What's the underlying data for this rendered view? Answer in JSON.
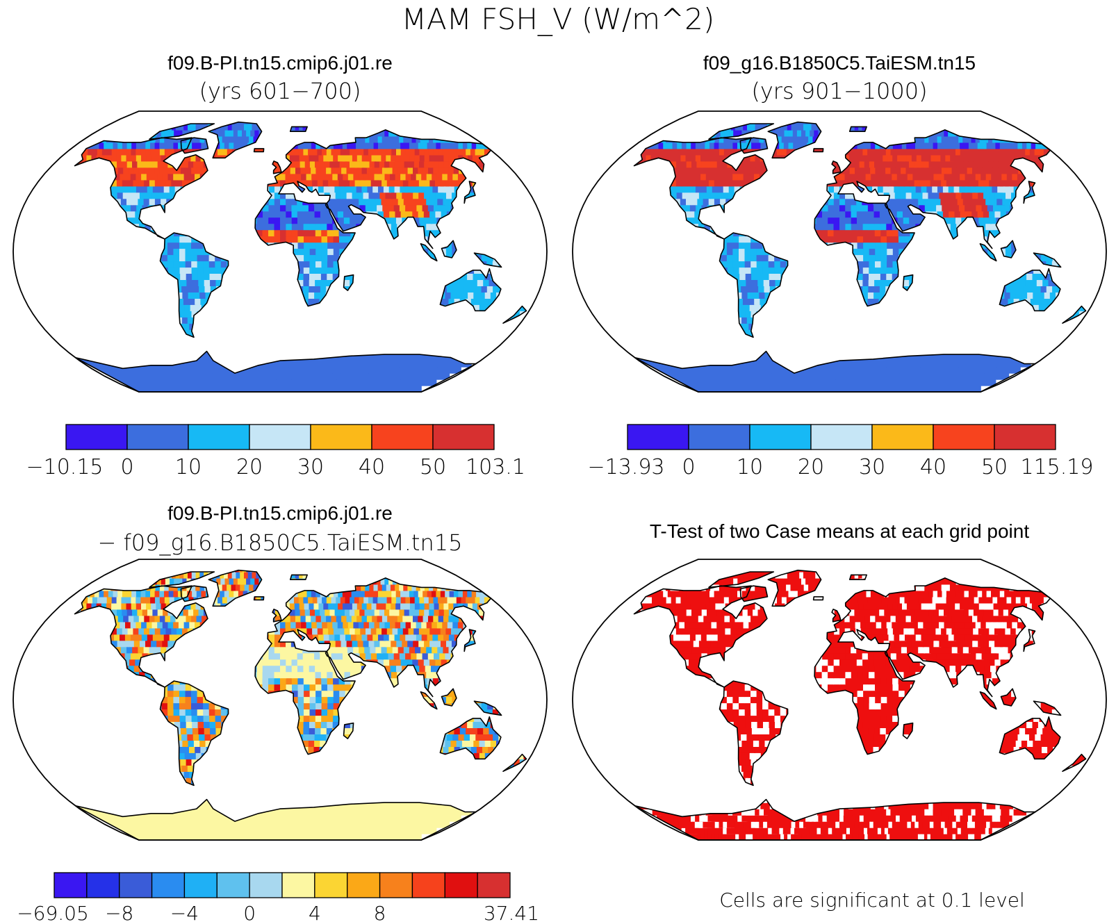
{
  "figure": {
    "title": "MAM FSH_V (W/m^2)"
  },
  "panels": [
    {
      "id": "case1",
      "title": "f09.B-PI.tn15.cmip6.j01.re",
      "subtitle": "(yrs 601−700)",
      "colorbar": {
        "colors": [
          "#3a17f2",
          "#3c6ede",
          "#17b9f5",
          "#c6e6f6",
          "#fbb919",
          "#f7431e",
          "#d73030"
        ],
        "labels": [
          "−10.15",
          "0",
          "10",
          "20",
          "30",
          "40",
          "50",
          "103.1"
        ]
      }
    },
    {
      "id": "case2",
      "title": "f09_g16.B1850C5.TaiESM.tn15",
      "subtitle": "(yrs 901−1000)",
      "colorbar": {
        "colors": [
          "#3a17f2",
          "#3c6ede",
          "#17b9f5",
          "#c6e6f6",
          "#fbb919",
          "#f7431e",
          "#d73030"
        ],
        "labels": [
          "−13.93",
          "0",
          "10",
          "20",
          "30",
          "40",
          "50",
          "115.19"
        ]
      }
    },
    {
      "id": "difference",
      "title": "f09.B-PI.tn15.cmip6.j01.re",
      "subtitle": "− f09_g16.B1850C5.TaiESM.tn15",
      "colorbar": {
        "colors": [
          "#3a17f2",
          "#2531e8",
          "#3a5cd8",
          "#2a8cf0",
          "#1fb0f5",
          "#5fc1ee",
          "#a8d8ef",
          "#fcf7a2",
          "#fbd533",
          "#fba817",
          "#f7811c",
          "#f6421c",
          "#e01010",
          "#d73030"
        ],
        "labels": [
          "−69.05",
          "",
          "−8",
          "",
          "−4",
          "",
          "0",
          "",
          "4",
          "",
          "8",
          "",
          "",
          "37.41"
        ]
      }
    },
    {
      "id": "ttest",
      "title": "T-Test of two Case means at each grid point",
      "footnote": "Cells are significant at 0.1 level",
      "colors": {
        "significant": "#ee0f0f"
      }
    }
  ]
}
